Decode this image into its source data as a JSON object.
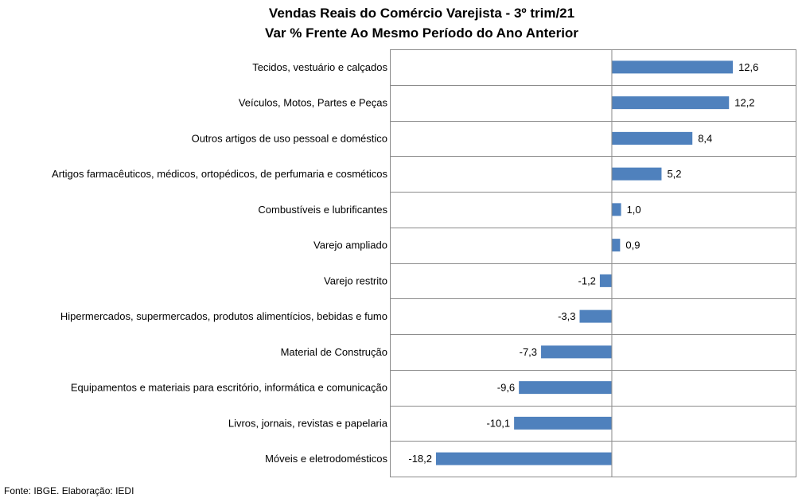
{
  "chart_data": {
    "type": "bar",
    "orientation": "horizontal",
    "title": "Vendas Reais do Comércio Varejista - 3º trim/21",
    "subtitle": "Var % Frente Ao Mesmo Período do Ano Anterior",
    "categories": [
      "Tecidos, vestuário e calçados",
      "Veículos, Motos, Partes e Peças",
      "Outros artigos de uso pessoal e doméstico",
      "Artigos farmacêuticos, médicos, ortopédicos, de perfumaria e cosméticos",
      "Combustíveis e lubrificantes",
      "Varejo ampliado",
      "Varejo restrito",
      "Hipermercados, supermercados, produtos alimentícios, bebidas e fumo",
      "Material de Construção",
      "Equipamentos e materiais para escritório, informática e comunicação",
      "Livros, jornais, revistas e papelaria",
      "Móveis e eletrodomésticos"
    ],
    "values": [
      12.6,
      12.2,
      8.4,
      5.2,
      1.0,
      0.9,
      -1.2,
      -3.3,
      -7.3,
      -9.6,
      -10.1,
      -18.2
    ],
    "value_labels": [
      "12,6",
      "12,2",
      "8,4",
      "5,2",
      "1,0",
      "0,9",
      "-1,2",
      "-3,3",
      "-7,3",
      "-9,6",
      "-10,1",
      "-18,2"
    ],
    "xlim": [
      -18.2,
      15.4
    ],
    "bar_color": "#4f81bd",
    "grid": true
  },
  "source_note": "Fonte: IBGE. Elaboração: IEDI"
}
